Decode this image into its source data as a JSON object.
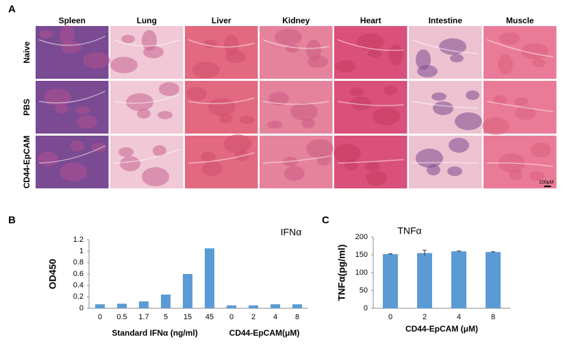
{
  "panel_a": {
    "label": "A",
    "columns": [
      "Spleen",
      "Lung",
      "Liver",
      "Kidney",
      "Heart",
      "Intestine",
      "Muscle"
    ],
    "rows": [
      "Naive",
      "PBS",
      "CD44-EpCAM"
    ],
    "scale_bar": "100μM"
  },
  "chart_data": [
    {
      "type": "bar",
      "panel": "B",
      "title": "IFNα",
      "y_label": "OD450",
      "categories": [
        "0",
        "0.5",
        "1.7",
        "5",
        "15",
        "45",
        "0",
        "2",
        "4",
        "8"
      ],
      "groups": [
        {
          "label": "Standard IFNα (ng/ml)",
          "count": 6
        },
        {
          "label": "CD44-EpCAM(μM)",
          "count": 4
        }
      ],
      "values": [
        0.07,
        0.08,
        0.12,
        0.24,
        0.6,
        1.05,
        0.05,
        0.05,
        0.07,
        0.07
      ],
      "color": "#5b9bd5",
      "ylim": [
        0,
        1.2
      ],
      "yticks": [
        0,
        0.2,
        0.4,
        0.6,
        0.8,
        1,
        1.2
      ]
    },
    {
      "type": "bar",
      "panel": "C",
      "title": "TNFα",
      "y_label": "TNFα(pg/ml)",
      "x_label": "CD44-EpCAM (μM)",
      "categories": [
        "0",
        "2",
        "4",
        "8"
      ],
      "values": [
        152,
        155,
        160,
        158
      ],
      "errors": [
        1,
        8,
        1,
        1
      ],
      "color": "#5b9bd5",
      "ylim": [
        0,
        200
      ],
      "yticks": [
        0,
        50,
        100,
        150,
        200
      ]
    }
  ]
}
